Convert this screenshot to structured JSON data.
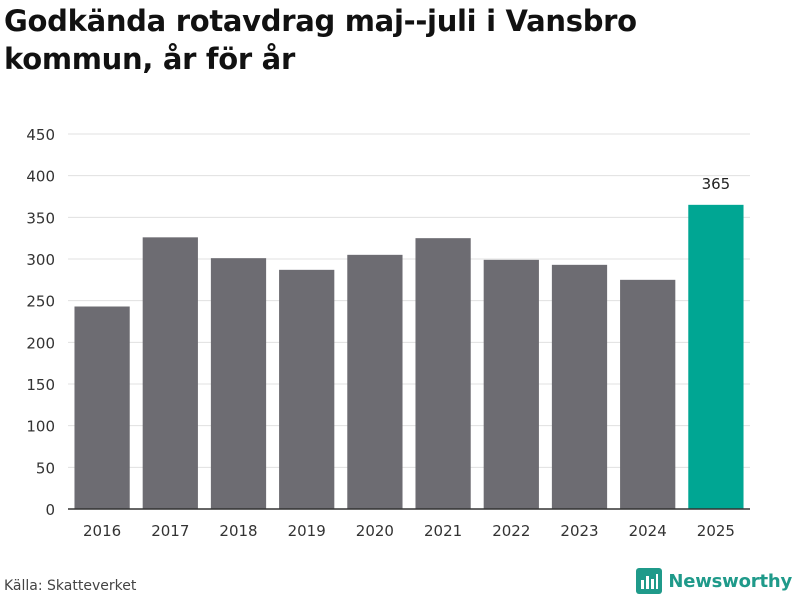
{
  "title": "Godkända rotavdrag maj--juli i Vansbro kommun, år för år",
  "source": "Källa: Skatteverket",
  "brand": {
    "name": "Newsworthy",
    "icon": "newsworthy-logo-icon",
    "color": "#1f9a8a"
  },
  "colors": {
    "bar": "#6d6c72",
    "highlight": "#00a693",
    "grid": "#e0e0e0",
    "axis": "#333333",
    "text": "#333333"
  },
  "chart_data": {
    "type": "bar",
    "title": "Godkända rotavdrag maj--juli i Vansbro kommun, år för år",
    "xlabel": "",
    "ylabel": "",
    "categories": [
      "2016",
      "2017",
      "2018",
      "2019",
      "2020",
      "2021",
      "2022",
      "2023",
      "2024",
      "2025"
    ],
    "values": [
      243,
      326,
      301,
      287,
      305,
      325,
      299,
      293,
      275,
      365
    ],
    "highlight_index": 9,
    "data_labels": [
      {
        "index": 9,
        "text": "365"
      }
    ],
    "ylim": [
      0,
      450
    ],
    "yticks": [
      0,
      50,
      100,
      150,
      200,
      250,
      300,
      350,
      400,
      450
    ],
    "grid": true,
    "legend": "none"
  }
}
